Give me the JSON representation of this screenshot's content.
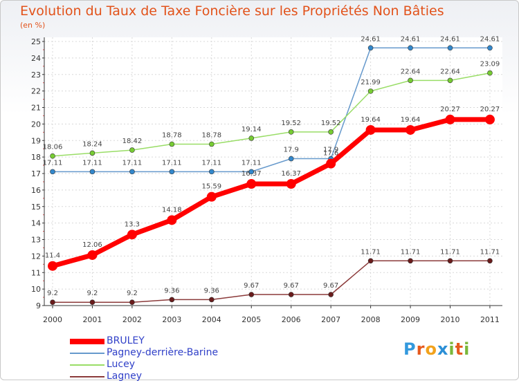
{
  "title": "Evolution du Taux de Taxe Foncière sur les Propriétés Non Bâties",
  "subtitle": "(en %)",
  "chart_data": {
    "type": "line",
    "title": "Evolution du Taux de Taxe Foncière sur les Propriétés Non Bâties",
    "ylabel": "(en %)",
    "xlabel": "",
    "ylim": [
      9,
      25
    ],
    "y_ticks": [
      9,
      10,
      11,
      12,
      13,
      14,
      15,
      16,
      17,
      18,
      19,
      20,
      21,
      22,
      23,
      24,
      25
    ],
    "categories": [
      "2000",
      "2001",
      "2002",
      "2003",
      "2004",
      "2005",
      "2006",
      "2007",
      "2008",
      "2009",
      "2010",
      "2011"
    ],
    "grid": true,
    "legend_position": "bottom-left",
    "series": [
      {
        "name": "BRULEY",
        "color": "#ff0000",
        "values": [
          11.4,
          12.06,
          13.3,
          14.18,
          15.59,
          16.37,
          16.37,
          17.6,
          19.64,
          19.64,
          20.27,
          20.27
        ],
        "labels": [
          "11.4",
          "12.06",
          "13.3",
          "14.18",
          "15.59",
          "16.37",
          "16.37",
          "17.6",
          "19.64",
          "19.64",
          "20.27",
          "20.27"
        ]
      },
      {
        "name": "Pagney-derrière-Barine",
        "color": "#6699cc",
        "values": [
          17.11,
          17.11,
          17.11,
          17.11,
          17.11,
          17.11,
          17.9,
          17.9,
          24.61,
          24.61,
          24.61,
          24.61
        ],
        "labels": [
          "17.11",
          "17.11",
          "17.11",
          "17.11",
          "17.11",
          "17.11",
          "17.9",
          "17.9",
          "24.61",
          "24.61",
          "24.61",
          "24.61"
        ]
      },
      {
        "name": "Lucey",
        "color": "#99dd66",
        "values": [
          18.06,
          18.24,
          18.42,
          18.78,
          18.78,
          19.14,
          19.52,
          19.52,
          21.99,
          22.64,
          22.64,
          23.09
        ],
        "labels": [
          "18.06",
          "18.24",
          "18.42",
          "18.78",
          "18.78",
          "19.14",
          "19.52",
          "19.52",
          "21.99",
          "22.64",
          "22.64",
          "23.09"
        ]
      },
      {
        "name": "Lagney",
        "color": "#8b3a3a",
        "values": [
          9.2,
          9.2,
          9.2,
          9.36,
          9.36,
          9.67,
          9.67,
          9.67,
          11.71,
          11.71,
          11.71,
          11.71
        ],
        "labels": [
          "9.2",
          "9.2",
          "9.2",
          "9.36",
          "9.36",
          "9.67",
          "9.67",
          "9.67",
          "11.71",
          "11.71",
          "11.71",
          "11.71"
        ]
      }
    ]
  },
  "logo": {
    "letters": [
      "P",
      "r",
      "o",
      "x",
      "i",
      "t",
      "i"
    ],
    "colors": [
      "#3399dd",
      "#e65a1e",
      "#f2a21c",
      "#2b8fd6",
      "#7ab73a",
      "#e65a1e",
      "#7ab73a"
    ]
  }
}
